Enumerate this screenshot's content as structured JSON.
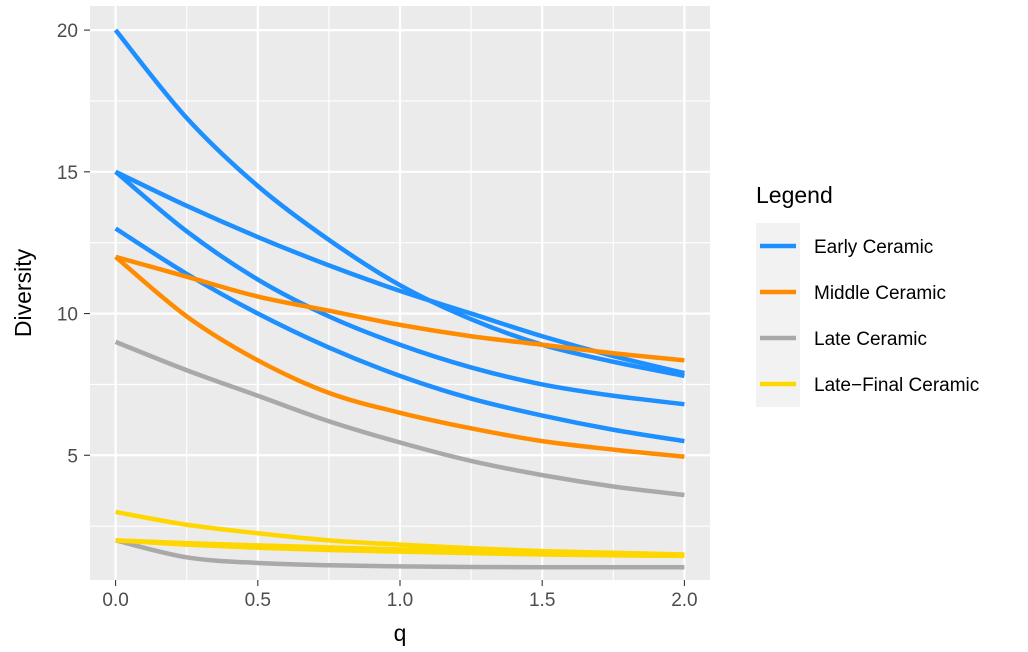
{
  "chart_data": {
    "type": "line",
    "title": "",
    "xlabel": "q",
    "ylabel": "Diversity",
    "xlim": [
      -0.09,
      2.09
    ],
    "ylim": [
      0.6,
      20.85
    ],
    "x_ticks": [
      {
        "value": 0.0,
        "label": "0.0"
      },
      {
        "value": 0.5,
        "label": "0.5"
      },
      {
        "value": 1.0,
        "label": "1.0"
      },
      {
        "value": 1.5,
        "label": "1.5"
      },
      {
        "value": 2.0,
        "label": "2.0"
      }
    ],
    "y_ticks": [
      {
        "value": 5,
        "label": "5"
      },
      {
        "value": 10,
        "label": "10"
      },
      {
        "value": 15,
        "label": "15"
      },
      {
        "value": 20,
        "label": "20"
      }
    ],
    "grid": true,
    "x": [
      0.0,
      0.25,
      0.5,
      0.75,
      1.0,
      1.25,
      1.5,
      1.75,
      2.0
    ],
    "legend": {
      "title": "Legend",
      "position": "right",
      "entries": [
        {
          "label": "Early Ceramic",
          "color": "#1E8FFF"
        },
        {
          "label": "Middle Ceramic",
          "color": "#FF8C00"
        },
        {
          "label": "Late Ceramic",
          "color": "#A9A9A9"
        },
        {
          "label": "Late−Final Ceramic",
          "color": "#FFD700"
        }
      ]
    },
    "series": [
      {
        "group": "Early Ceramic",
        "color": "#1E8FFF",
        "values": [
          20.0,
          16.9,
          14.5,
          12.6,
          11.0,
          9.8,
          8.9,
          8.3,
          7.8
        ]
      },
      {
        "group": "Early Ceramic",
        "color": "#1E8FFF",
        "values": [
          15.0,
          13.8,
          12.7,
          11.7,
          10.8,
          10.0,
          9.2,
          8.5,
          7.9
        ]
      },
      {
        "group": "Early Ceramic",
        "color": "#1E8FFF",
        "values": [
          15.0,
          12.9,
          11.2,
          9.9,
          8.9,
          8.1,
          7.5,
          7.1,
          6.8
        ]
      },
      {
        "group": "Early Ceramic",
        "color": "#1E8FFF",
        "values": [
          13.0,
          11.4,
          10.0,
          8.8,
          7.8,
          7.0,
          6.4,
          5.9,
          5.5
        ]
      },
      {
        "group": "Middle Ceramic",
        "color": "#FF8C00",
        "values": [
          12.0,
          11.3,
          10.6,
          10.1,
          9.6,
          9.2,
          8.9,
          8.6,
          8.35
        ]
      },
      {
        "group": "Middle Ceramic",
        "color": "#FF8C00",
        "values": [
          12.0,
          9.9,
          8.35,
          7.2,
          6.5,
          5.95,
          5.5,
          5.2,
          4.95
        ]
      },
      {
        "group": "Late Ceramic",
        "color": "#A9A9A9",
        "values": [
          9.0,
          8.0,
          7.1,
          6.2,
          5.45,
          4.8,
          4.3,
          3.9,
          3.6
        ]
      },
      {
        "group": "Late Ceramic",
        "color": "#A9A9A9",
        "values": [
          2.0,
          1.4,
          1.2,
          1.12,
          1.08,
          1.06,
          1.05,
          1.05,
          1.05
        ]
      },
      {
        "group": "Late−Final Ceramic",
        "color": "#FFD700",
        "values": [
          3.0,
          2.55,
          2.25,
          2.0,
          1.85,
          1.72,
          1.62,
          1.56,
          1.5
        ]
      },
      {
        "group": "Late−Final Ceramic",
        "color": "#FFD700",
        "values": [
          2.0,
          1.9,
          1.82,
          1.75,
          1.68,
          1.62,
          1.56,
          1.51,
          1.46
        ]
      },
      {
        "group": "Late−Final Ceramic",
        "color": "#FFD700",
        "values": [
          2.0,
          1.85,
          1.74,
          1.66,
          1.6,
          1.55,
          1.5,
          1.47,
          1.45
        ]
      }
    ]
  }
}
